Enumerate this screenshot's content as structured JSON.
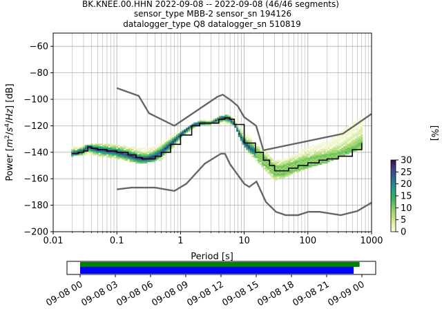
{
  "title_lines": [
    "BK.KNEE.00.HHN   2022-09-08 -- 2022-09-08  (46/46 segments)",
    "sensor_type MBB-2 sensor_sn 194126",
    "datalogger_type Q8 datalogger_sn 510819"
  ],
  "chart_data": [
    {
      "type": "heatmap",
      "subtype": "probabilistic power spectral density",
      "xlabel": "Period [s]",
      "ylabel": "Power [$m^2/s^4/Hz$] [dB]",
      "x_scale": "log",
      "xlim": [
        0.01,
        1000
      ],
      "ylim": [
        -200,
        -50
      ],
      "x_ticks": [
        0.01,
        0.1,
        1,
        10,
        100,
        1000
      ],
      "x_tick_labels": [
        "0.01",
        "0.1",
        "1",
        "10",
        "100",
        "1000"
      ],
      "y_ticks": [
        -200,
        -180,
        -160,
        -140,
        -120,
        -100,
        -80,
        -60
      ],
      "y_tick_labels": [
        "−200",
        "−180",
        "−160",
        "−140",
        "−120",
        "−100",
        "−80",
        "−60"
      ],
      "grid": true,
      "colorbar": {
        "label": "[%]",
        "range": [
          0,
          30
        ],
        "ticks": [
          0,
          5,
          10,
          15,
          20,
          25,
          30
        ],
        "tick_labels": [
          "0",
          "5",
          "10",
          "15",
          "20",
          "25",
          "30"
        ],
        "colormap": "viridis-like (pale yellow to dark purple)"
      },
      "colors": {
        "mean_line": "#000000",
        "noise_model": "#666666",
        "grid": "#b0b0b0"
      },
      "mean_curve": {
        "name": "mean",
        "x": [
          0.02,
          0.025,
          0.03,
          0.035,
          0.04,
          0.05,
          0.07,
          0.1,
          0.15,
          0.2,
          0.25,
          0.3,
          0.4,
          0.5,
          0.7,
          1,
          1.5,
          2,
          3,
          4,
          5,
          6,
          7,
          10,
          15,
          20,
          25,
          30,
          40,
          50,
          70,
          100,
          150,
          200,
          300,
          500,
          700
        ],
        "y": [
          -141,
          -140,
          -139,
          -136,
          -137,
          -138,
          -139,
          -140,
          -142,
          -144,
          -145,
          -145,
          -143,
          -140,
          -134,
          -127,
          -120,
          -118,
          -118,
          -115,
          -114,
          -115,
          -119,
          -133,
          -140,
          -146,
          -150,
          -154,
          -154,
          -152,
          -150,
          -148,
          -146,
          -145,
          -143,
          -138,
          -133
        ]
      },
      "noise_model_high": {
        "name": "NHNM",
        "x": [
          0.1,
          0.22,
          0.32,
          0.8,
          3.8,
          4.6,
          6.3,
          7.9,
          10,
          15.4,
          20,
          354.8,
          1000
        ],
        "y": [
          -91.5,
          -97.4,
          -110.5,
          -120,
          -98,
          -96.5,
          -101,
          -105,
          -113.5,
          -120,
          -138.5,
          -126,
          -111
        ]
      },
      "noise_model_low": {
        "name": "NLNM",
        "x": [
          0.1,
          0.17,
          0.4,
          0.8,
          1.24,
          2.4,
          4.3,
          5,
          6,
          10,
          12,
          15.6,
          21.9,
          31.6,
          45,
          70,
          101,
          154,
          328,
          600,
          1000
        ],
        "y": [
          -168,
          -166.7,
          -166.7,
          -169.2,
          -163.7,
          -148.6,
          -141.1,
          -141.1,
          -149,
          -163.8,
          -166.2,
          -162.1,
          -177.5,
          -185,
          -187.5,
          -187.5,
          -185,
          -185,
          -187.5,
          -184.4,
          -178
        ]
      },
      "density_envelope": {
        "x": [
          0.02,
          0.03,
          0.05,
          0.1,
          0.2,
          0.3,
          0.5,
          1,
          2,
          3,
          5,
          7,
          10,
          20,
          30,
          50,
          100,
          200,
          500,
          700
        ],
        "upper": [
          -136,
          -135,
          -133,
          -134,
          -136,
          -137,
          -133,
          -123,
          -116,
          -116,
          -111,
          -114,
          -124,
          -138,
          -146,
          -144,
          -136,
          -132,
          -118,
          -113
        ],
        "lower": [
          -143,
          -142,
          -143,
          -145,
          -148,
          -148,
          -146,
          -130,
          -120,
          -119,
          -118,
          -120,
          -136,
          -152,
          -162,
          -158,
          -152,
          -148,
          -140,
          -138
        ]
      }
    },
    {
      "type": "bar",
      "subtype": "data availability timeline",
      "x_tick_labels": [
        "09-08 00",
        "09-08 03",
        "09-08 06",
        "09-08 09",
        "09-08 12",
        "09-08 15",
        "09-08 18",
        "09-08 21",
        "09-09 00"
      ],
      "series": [
        {
          "color": "#008000",
          "start_hour": 0,
          "end_hour": 23.8
        },
        {
          "color": "#0000ff",
          "start_hour": 0,
          "end_hour": 23.3
        }
      ]
    }
  ]
}
